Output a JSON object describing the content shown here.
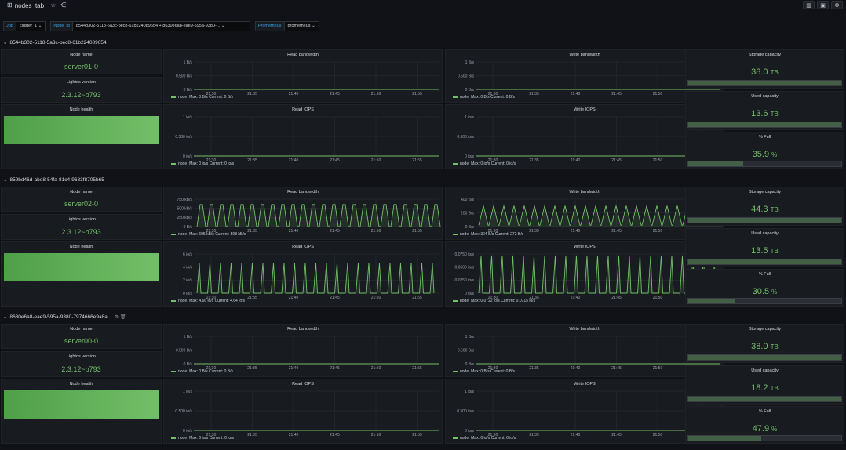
{
  "header": {
    "title": "nodes_tab",
    "icons": [
      "grid-icon",
      "star-icon",
      "share-icon"
    ],
    "right_icons": [
      "add-panel-icon",
      "save-icon",
      "settings-icon"
    ]
  },
  "variables": [
    {
      "label": "Job",
      "value": "cluster_1 ⌄"
    },
    {
      "label": "Node_id",
      "value": "8544b302-5118-5a3c-bec8-61b224089654 + 8630e6a8-eae9-595a-9380-... ⌄"
    },
    {
      "label": "Prometheus",
      "value": "prometheus ⌄"
    }
  ],
  "labels": {
    "node_name": "Node name",
    "lightos_version": "Lightos version",
    "node_health": "Node health",
    "read_bw": "Read bandwidth",
    "write_bw": "Write bandwidth",
    "read_iops": "Read IOPS",
    "write_iops": "Write IOPS",
    "storage_capacity": "Storage capacity",
    "used_capacity": "Used capacity",
    "pct_full": "% Full",
    "legend_series": "node"
  },
  "time_ticks": [
    "21:30",
    "21:35",
    "21:40",
    "21:45",
    "21:50",
    "21:55"
  ],
  "rows": [
    {
      "node_id": "8544b302-5118-5a3c-bec8-61b224089654",
      "chevron": "⌄",
      "row_icons": "",
      "node_name": "server01-0",
      "lightos_version": "2.3.12~b793",
      "storage_capacity": {
        "value": "38.0",
        "unit": "TB"
      },
      "used_capacity": {
        "value": "13.6",
        "unit": "TB"
      },
      "pct_full": {
        "value": "35.9",
        "unit": "%",
        "fraction": 0.359
      },
      "read_bw": {
        "y_ticks": [
          "1 B/s",
          "0.500 B/s",
          "0 B/s"
        ],
        "y_max": 1,
        "legend": "Max: 0 B/s  Current: 0 B/s",
        "pattern": "flat"
      },
      "write_bw": {
        "y_ticks": [
          "1 B/s",
          "0.500 B/s",
          "0 B/s"
        ],
        "y_max": 1,
        "legend": "Max: 0 B/s  Current: 0 B/s",
        "pattern": "flat"
      },
      "read_iops": {
        "y_ticks": [
          "1 io/s",
          "0.500 io/s",
          "0 io/s"
        ],
        "y_max": 1,
        "legend": "Max: 0 io/s  Current: 0 io/s",
        "pattern": "flat"
      },
      "write_iops": {
        "y_ticks": [
          "1 io/s",
          "0.500 io/s",
          "0 io/s"
        ],
        "y_max": 1,
        "legend": "Max: 0 io/s  Current: 0 io/s",
        "pattern": "flat"
      }
    },
    {
      "node_id": "859bd46d-abe8-54fa-81c4-9683f8705b65",
      "chevron": "⌄",
      "row_icons": "",
      "node_name": "server02-0",
      "lightos_version": "2.3.12~b793",
      "storage_capacity": {
        "value": "44.3",
        "unit": "TB"
      },
      "used_capacity": {
        "value": "13.5",
        "unit": "TB"
      },
      "pct_full": {
        "value": "30.5",
        "unit": "%",
        "fraction": 0.305
      },
      "read_bw": {
        "y_ticks": [
          "750 kB/s",
          "500 kB/s",
          "250 kB/s",
          "0 B/s"
        ],
        "y_max": 750,
        "peak": 605,
        "low": 0,
        "legend": "Max: 605 kB/s  Current: 598 kB/s",
        "pattern": "trapezoid"
      },
      "write_bw": {
        "y_ticks": [
          "400 B/s",
          "200 B/s",
          "0 B/s"
        ],
        "y_max": 400,
        "peak": 304,
        "low": 20,
        "legend": "Max: 304 B/s  Current: 272 B/s",
        "pattern": "triangle"
      },
      "read_iops": {
        "y_ticks": [
          "6 io/s",
          "4 io/s",
          "2 io/s",
          "0 io/s"
        ],
        "y_max": 6,
        "peak": 4.66,
        "low": 0,
        "legend": "Max: 4.66 io/s  Current: 4.64 io/s",
        "pattern": "spike"
      },
      "write_iops": {
        "y_ticks": [
          "0.0750 io/s",
          "0.0500 io/s",
          "0.0250 io/s",
          "0 io/s"
        ],
        "y_max": 0.075,
        "peak": 0.0722,
        "low": 0,
        "legend": "Max: 0.0722 io/s  Current: 0.0715 io/s",
        "pattern": "spike"
      }
    },
    {
      "node_id": "8630e6a8-eae9-595a-9380-7974666e9a8a",
      "chevron": "⌄",
      "row_icons": "⚙  🗑",
      "node_name": "server00-0",
      "lightos_version": "2.3.12~b793",
      "storage_capacity": {
        "value": "38.0",
        "unit": "TB"
      },
      "used_capacity": {
        "value": "18.2",
        "unit": "TB"
      },
      "pct_full": {
        "value": "47.9",
        "unit": "%",
        "fraction": 0.479
      },
      "read_bw": {
        "y_ticks": [
          "1 B/s",
          "0.500 B/s",
          "0 B/s"
        ],
        "y_max": 1,
        "legend": "Max: 0 B/s  Current: 0 B/s",
        "pattern": "flat"
      },
      "write_bw": {
        "y_ticks": [
          "1 B/s",
          "0.500 B/s",
          "0 B/s"
        ],
        "y_max": 1,
        "legend": "Max: 0 B/s  Current: 0 B/s",
        "pattern": "flat"
      },
      "read_iops": {
        "y_ticks": [
          "1 io/s",
          "0.500 io/s",
          "0 io/s"
        ],
        "y_max": 1,
        "legend": "Max: 0 io/s  Current: 0 io/s",
        "pattern": "flat"
      },
      "write_iops": {
        "y_ticks": [
          "1 io/s",
          "0.500 io/s",
          "0 io/s"
        ],
        "y_max": 1,
        "legend": "Max: 0 io/s  Current: 0 io/s",
        "pattern": "flat"
      }
    }
  ],
  "colors": {
    "series": "#73bf69",
    "accent": "#33a2e5"
  }
}
